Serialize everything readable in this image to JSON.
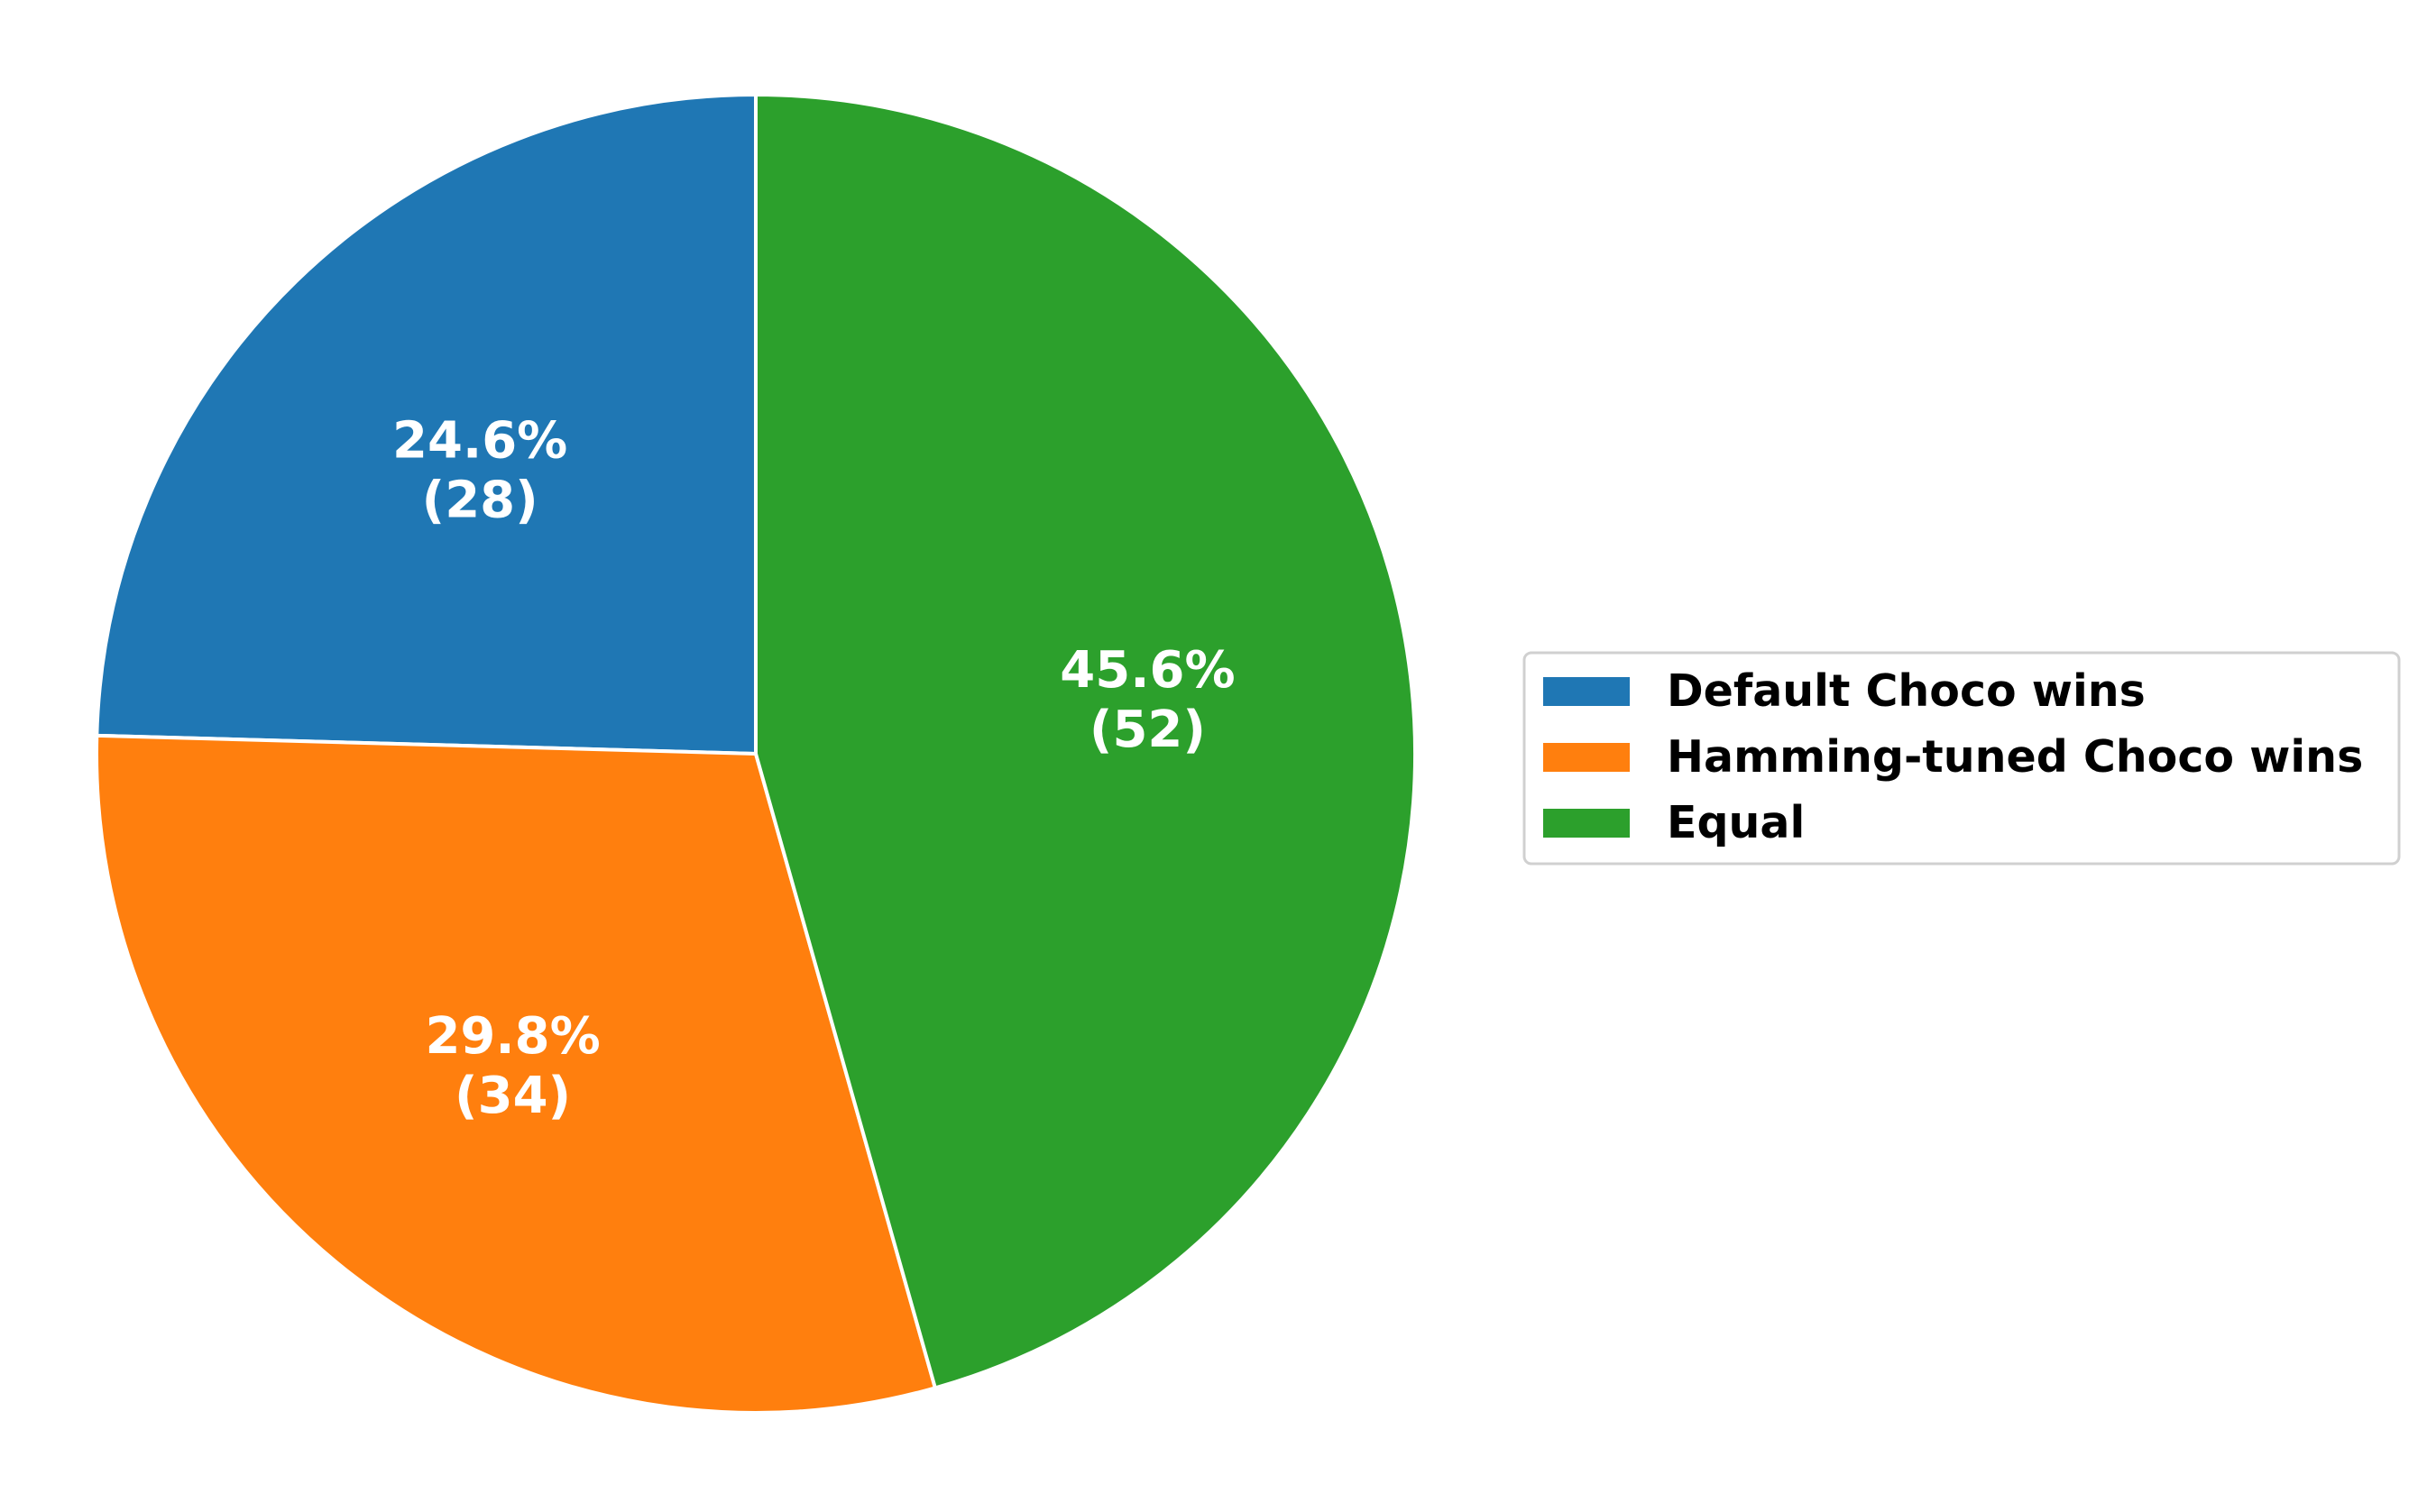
{
  "chart_data": {
    "type": "pie",
    "categories": [
      "Default Choco wins",
      "Hamming-tuned Choco wins",
      "Equal"
    ],
    "values": [
      28,
      34,
      52
    ],
    "percent_labels": [
      "24.6%",
      "29.8%",
      "45.6%"
    ],
    "count_labels": [
      "(28)",
      "(34)",
      "(52)"
    ],
    "colors": [
      "#1f77b4",
      "#ff7f0e",
      "#2ca02c"
    ],
    "start_angle_deg": 90,
    "direction": "counterclockwise",
    "legend": {
      "placement": "center-right",
      "entries": [
        "Default Choco wins",
        "Hamming-tuned Choco wins",
        "Equal"
      ]
    }
  }
}
